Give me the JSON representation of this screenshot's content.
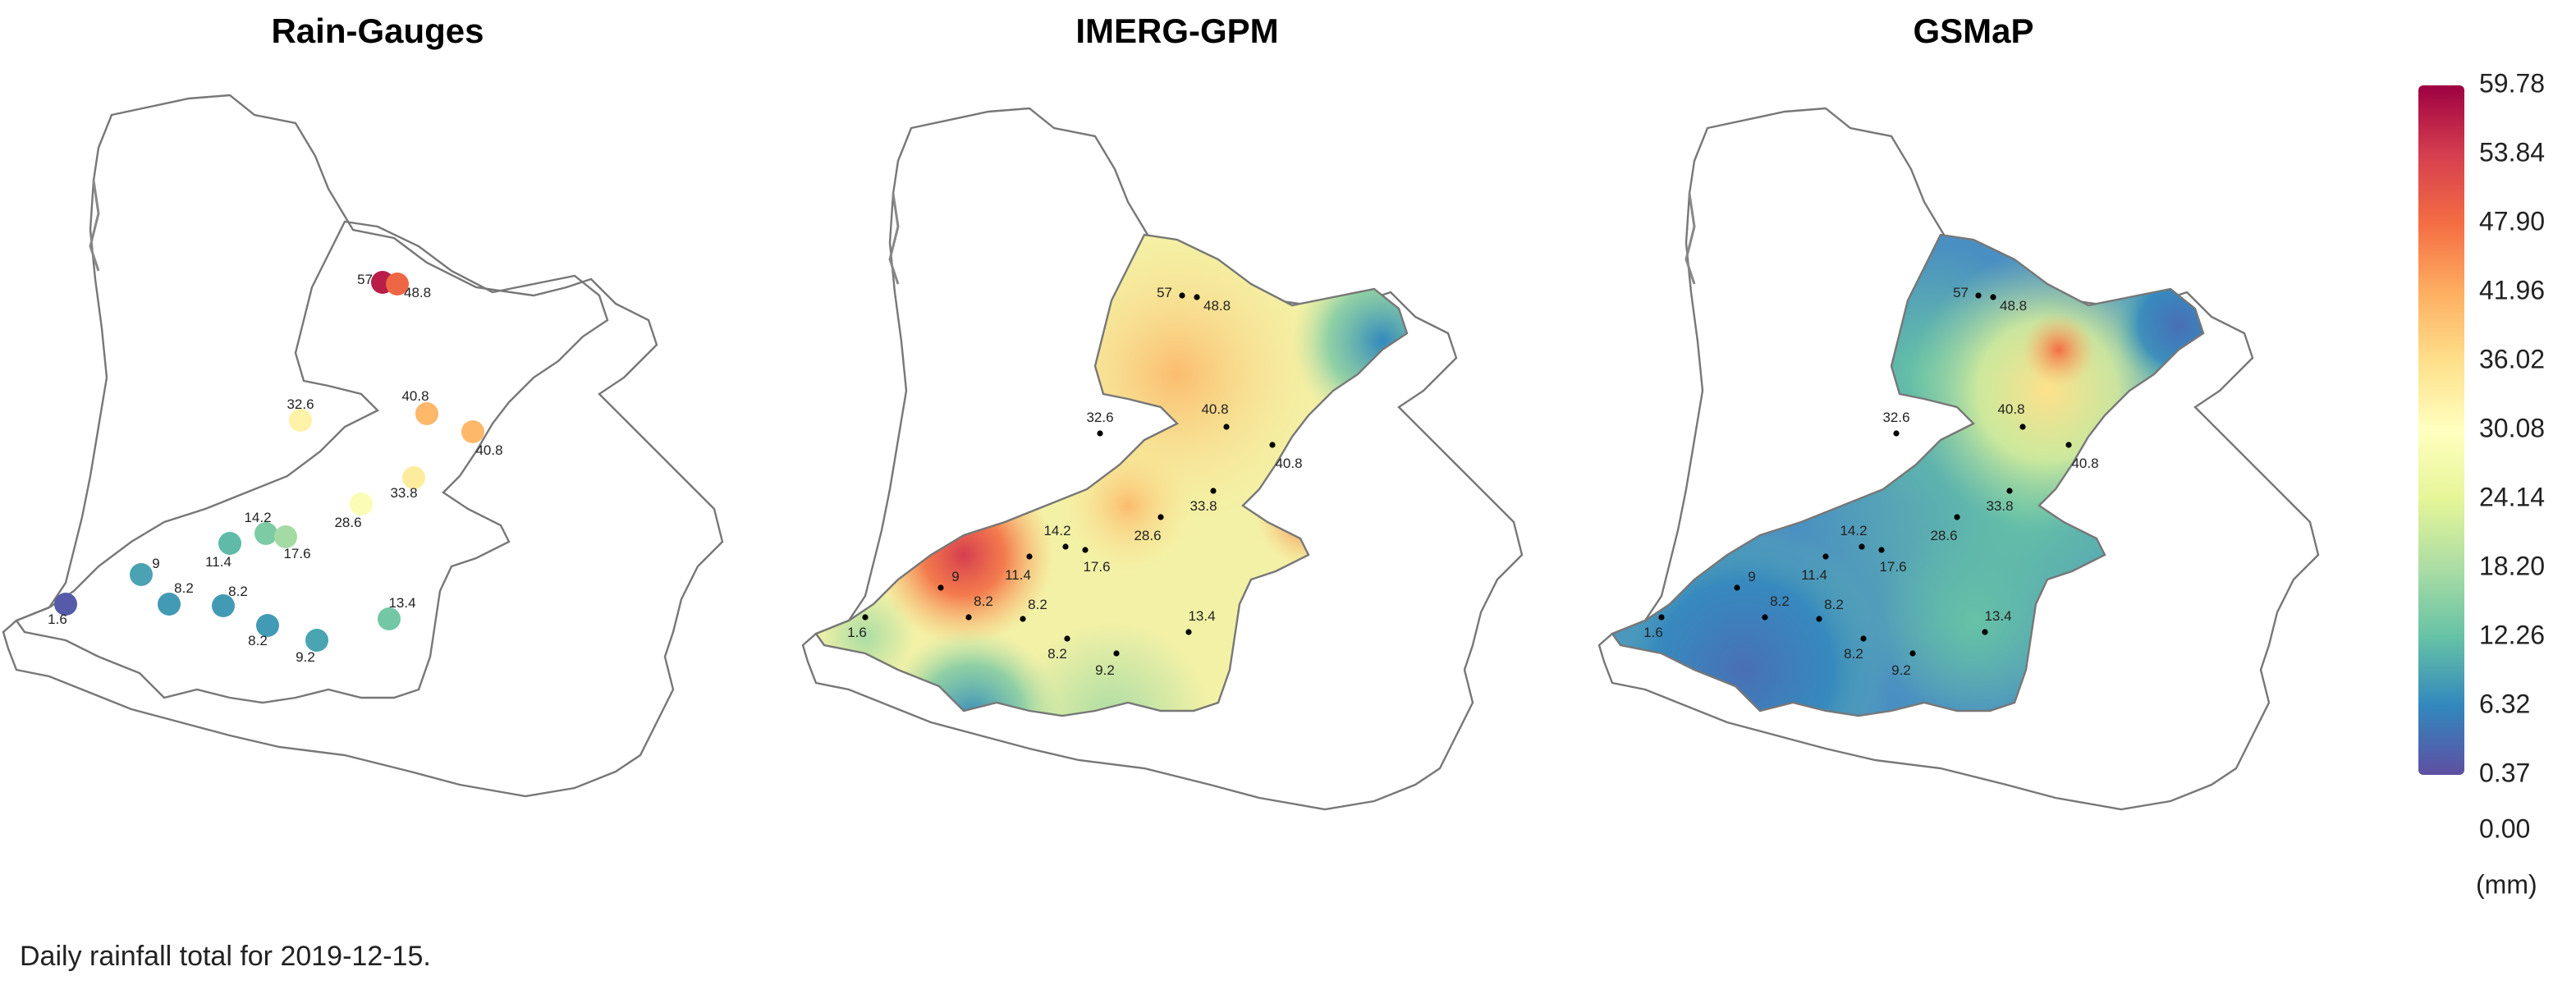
{
  "panels": [
    "Rain-Gauges",
    "IMERG-GPM",
    "GSMaP"
  ],
  "stations": [
    57,
    48.8,
    32.6,
    40.8,
    40.8,
    33.8,
    28.6,
    14.2,
    17.6,
    11.4,
    9,
    8.2,
    8.2,
    8.2,
    9.2,
    13.4,
    1.6
  ],
  "colorbar": {
    "ticks": [
      59.78,
      53.84,
      {
        "value": 47.9,
        "label": "47.90"
      },
      41.96,
      36.02,
      30.08,
      24.14,
      {
        "value": 18.2,
        "label": "18.20"
      },
      12.26,
      6.32,
      0.37,
      {
        "value": 0,
        "label": "0.00"
      }
    ],
    "unit": "(mm)",
    "colors": [
      "#9e0142",
      "#d53e4f",
      "#f46d43",
      "#fdae61",
      "#fee08b",
      "#ffffbf",
      "#e6f598",
      "#abdda4",
      "#66c2a5",
      "#3288bd",
      "#5e4fa2"
    ]
  },
  "caption": "Daily rainfall total for 2019-12-15."
}
